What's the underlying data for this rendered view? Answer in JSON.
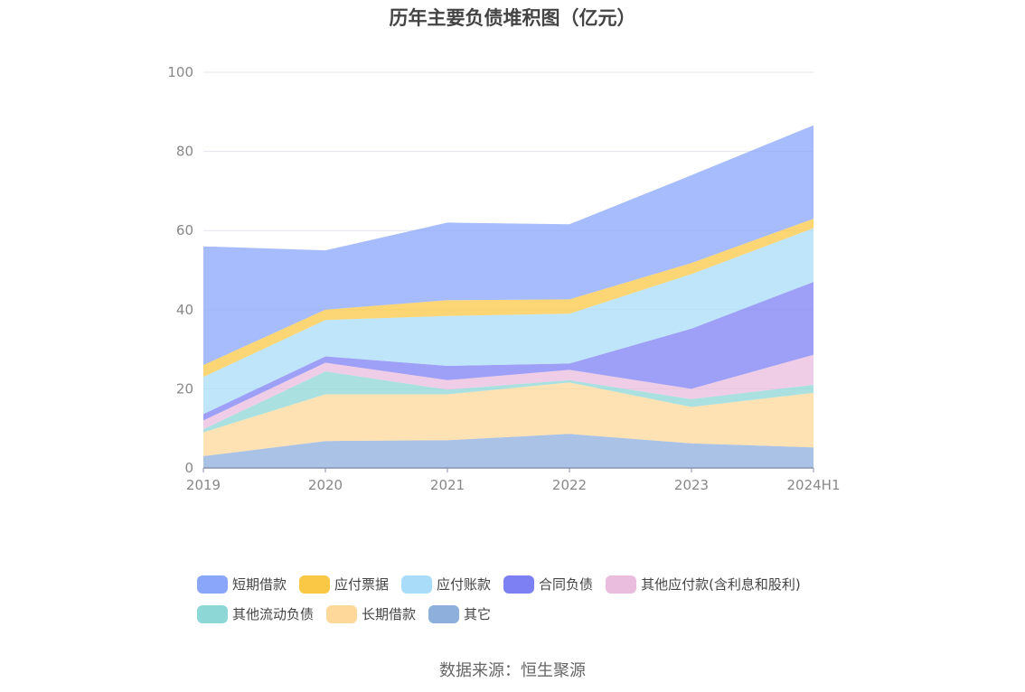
{
  "title": "历年主要负债堆积图（亿元）",
  "source": "数据来源：恒生聚源",
  "chart_data": {
    "type": "area",
    "stacked": true,
    "categories": [
      "2019",
      "2020",
      "2021",
      "2022",
      "2023",
      "2024H1"
    ],
    "ylim": [
      0,
      100
    ],
    "yticks": [
      0,
      20,
      40,
      60,
      80,
      100
    ],
    "grid": true,
    "legend_position": "bottom",
    "series": [
      {
        "name": "其它",
        "color": "#8eaedc",
        "values": [
          3.0,
          6.8,
          7.0,
          8.6,
          6.2,
          5.2
        ]
      },
      {
        "name": "长期借款",
        "color": "#fdd89a",
        "values": [
          6.0,
          11.8,
          11.6,
          13.0,
          9.2,
          13.8
        ]
      },
      {
        "name": "其他流动负债",
        "color": "#8dd7d6",
        "values": [
          0.8,
          5.8,
          1.2,
          0.6,
          2.0,
          2.0
        ]
      },
      {
        "name": "其他应付款(含利息和股利)",
        "color": "#eabcdd",
        "values": [
          2.2,
          2.2,
          2.4,
          2.6,
          2.6,
          7.6
        ]
      },
      {
        "name": "合同负债",
        "color": "#7c80f3",
        "values": [
          1.6,
          1.6,
          3.6,
          1.6,
          15.2,
          18.4
        ]
      },
      {
        "name": "应付账款",
        "color": "#a9dcf8",
        "values": [
          9.4,
          9.2,
          12.6,
          12.6,
          13.8,
          13.6
        ]
      },
      {
        "name": "应付票据",
        "color": "#fbc846",
        "values": [
          3.0,
          2.6,
          4.0,
          3.6,
          2.8,
          2.4
        ]
      },
      {
        "name": "短期借款",
        "color": "#8aa6fb",
        "values": [
          30.0,
          15.0,
          19.6,
          19.0,
          22.2,
          23.6
        ]
      }
    ]
  },
  "legend": {
    "row1": [
      {
        "label": "短期借款",
        "color": "#8aa6fb"
      },
      {
        "label": "应付票据",
        "color": "#fbc846"
      },
      {
        "label": "应付账款",
        "color": "#a9dcf8"
      },
      {
        "label": "合同负债",
        "color": "#7c80f3"
      },
      {
        "label": "其他应付款(含利息和股利)",
        "color": "#eabcdd"
      }
    ],
    "row2": [
      {
        "label": "其他流动负债",
        "color": "#8dd7d6"
      },
      {
        "label": "长期借款",
        "color": "#fdd89a"
      },
      {
        "label": "其它",
        "color": "#8eaedc"
      }
    ]
  }
}
